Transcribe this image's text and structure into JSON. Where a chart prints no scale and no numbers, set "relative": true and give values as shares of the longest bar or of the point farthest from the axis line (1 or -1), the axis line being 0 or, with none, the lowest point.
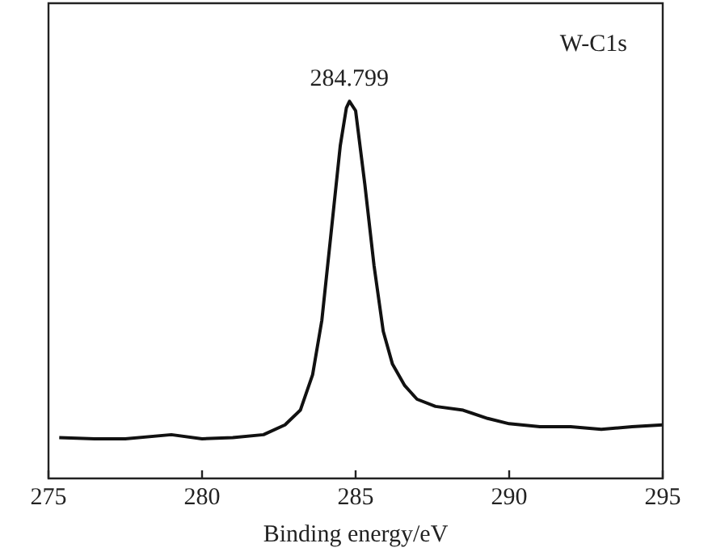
{
  "chart_data": {
    "type": "line",
    "relative": true,
    "xlabel": "Binding energy/eV",
    "xlim": [
      275,
      295
    ],
    "xticks": [
      275,
      280,
      285,
      290,
      295
    ],
    "tick_labels": "x",
    "grid": false,
    "legend": false,
    "marker": "none",
    "line_style": "solid",
    "annotations": [
      {
        "text": "284.799",
        "x": 284.799,
        "y": 1
      },
      "W-C1s"
    ],
    "series": [
      {
        "color": "#111111",
        "x": [
          275.35,
          276.5,
          277.5,
          279.0,
          280.0,
          281.0,
          282.0,
          282.7,
          283.2,
          283.6,
          283.9,
          284.2,
          284.5,
          284.7,
          284.8,
          285.0,
          285.3,
          285.6,
          285.9,
          286.2,
          286.6,
          287.0,
          287.6,
          288.5,
          289.3,
          290.0,
          291.0,
          292.0,
          293.0,
          294.0,
          295.0
        ],
        "values": [
          0.108,
          0.105,
          0.105,
          0.116,
          0.105,
          0.108,
          0.116,
          0.142,
          0.181,
          0.275,
          0.419,
          0.65,
          0.882,
          0.983,
          1,
          0.975,
          0.78,
          0.564,
          0.39,
          0.303,
          0.246,
          0.21,
          0.191,
          0.181,
          0.159,
          0.145,
          0.137,
          0.137,
          0.13,
          0.137,
          0.142
        ]
      }
    ]
  }
}
